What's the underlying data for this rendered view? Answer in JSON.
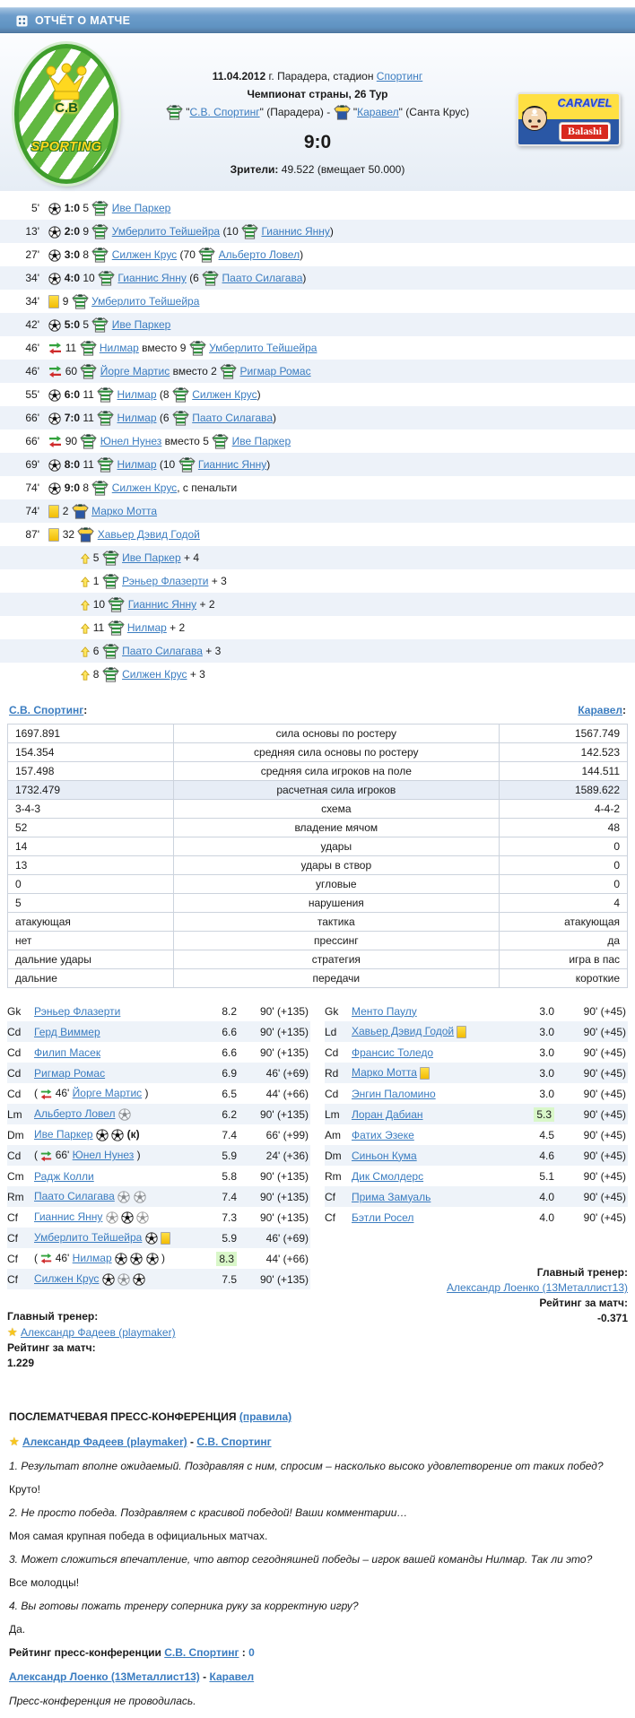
{
  "header": {
    "title": "ОТЧЁТ О МАТЧЕ"
  },
  "labels": {
    "colon": ":",
    "sub_word": "вместо"
  },
  "match": {
    "date": "11.04.2012",
    "date_mid": " г. Парадера, стадион ",
    "stadium": "Спортинг",
    "tournament": "Чемпионат страны, 26 Тур",
    "home": {
      "pre": "\"",
      "name": "С.В. Спортинг",
      "post": "\" (Парадера) - "
    },
    "away": {
      "pre": "\"",
      "name": "Каравел",
      "post": "\" (Санта Крус)"
    },
    "score": "9:0",
    "attendance_label": "Зрители:",
    "attendance": "49.522 (вмещает 50.000)",
    "home_logo": {
      "line1": "C.B",
      "line2": "SPORTING"
    },
    "away_logo": {
      "line1": "CARAVEL",
      "line2": "Balashi"
    }
  },
  "events": [
    {
      "type": "goal",
      "minute": "5'",
      "score": "1:0",
      "num": "5",
      "team": "home",
      "player": "Иве Паркер"
    },
    {
      "type": "goal",
      "minute": "13'",
      "score": "2:0",
      "num": "9",
      "team": "home",
      "player": "Умберлито Тейшейра",
      "assist_num": "10",
      "assist": "Гианнис Янну"
    },
    {
      "type": "goal",
      "minute": "27'",
      "score": "3:0",
      "num": "8",
      "team": "home",
      "player": "Силжен Крус",
      "assist_num": "70",
      "assist": "Альберто Ловел"
    },
    {
      "type": "goal",
      "minute": "34'",
      "score": "4:0",
      "num": "10",
      "team": "home",
      "player": "Гианнис Янну",
      "assist_num": "6",
      "assist": "Паато Силагава"
    },
    {
      "type": "yellow",
      "minute": "34'",
      "num": "9",
      "team": "home",
      "player": "Умберлито Тейшейра"
    },
    {
      "type": "goal",
      "minute": "42'",
      "score": "5:0",
      "num": "5",
      "team": "home",
      "player": "Иве Паркер"
    },
    {
      "type": "sub",
      "minute": "46'",
      "in_num": "11",
      "in": "Нилмар",
      "out_num": "9",
      "out": "Умберлито Тейшейра",
      "team": "home"
    },
    {
      "type": "sub",
      "minute": "46'",
      "in_num": "60",
      "in": "Йорге Мартис",
      "out_num": "2",
      "out": "Ригмар Ромас",
      "team": "home"
    },
    {
      "type": "goal",
      "minute": "55'",
      "score": "6:0",
      "num": "11",
      "team": "home",
      "player": "Нилмар",
      "assist_num": "8",
      "assist": "Силжен Крус"
    },
    {
      "type": "goal",
      "minute": "66'",
      "score": "7:0",
      "num": "11",
      "team": "home",
      "player": "Нилмар",
      "assist_num": "6",
      "assist": "Паато Силагава"
    },
    {
      "type": "sub",
      "minute": "66'",
      "in_num": "90",
      "in": "Юнел Нунез",
      "out_num": "5",
      "out": "Иве Паркер",
      "team": "home"
    },
    {
      "type": "goal",
      "minute": "69'",
      "score": "8:0",
      "num": "11",
      "team": "home",
      "player": "Нилмар",
      "assist_num": "10",
      "assist": "Гианнис Янну"
    },
    {
      "type": "goal",
      "minute": "74'",
      "score": "9:0",
      "num": "8",
      "team": "home",
      "player": "Силжен Крус",
      "note": ", с пенальти"
    },
    {
      "type": "yellow",
      "minute": "74'",
      "num": "2",
      "team": "away",
      "player": "Марко Мотта"
    },
    {
      "type": "yellow",
      "minute": "87'",
      "num": "32",
      "team": "away",
      "player": "Хавьер Дэвид Годой"
    },
    {
      "type": "bonus",
      "num": "5",
      "team": "home",
      "player": "Иве Паркер",
      "bonus": "+ 4"
    },
    {
      "type": "bonus",
      "num": "1",
      "team": "home",
      "player": "Рэньер Флазерти",
      "bonus": "+ 3"
    },
    {
      "type": "bonus",
      "num": "10",
      "team": "home",
      "player": "Гианнис Янну",
      "bonus": "+ 2"
    },
    {
      "type": "bonus",
      "num": "11",
      "team": "home",
      "player": "Нилмар",
      "bonus": "+ 2"
    },
    {
      "type": "bonus",
      "num": "6",
      "team": "home",
      "player": "Паато Силагава",
      "bonus": "+ 3"
    },
    {
      "type": "bonus",
      "num": "8",
      "team": "home",
      "player": "Силжен Крус",
      "bonus": "+ 3"
    }
  ],
  "stats": {
    "home_link": "С.В. Спортинг",
    "away_link": "Каравел",
    "rows": [
      {
        "home": "1697.891",
        "label": "сила основы по ростеру",
        "away": "1567.749"
      },
      {
        "home": "154.354",
        "label": "средняя сила основы по ростеру",
        "away": "142.523"
      },
      {
        "home": "157.498",
        "label": "средняя сила игроков на поле",
        "away": "144.511"
      },
      {
        "home": "1732.479",
        "label": "расчетная сила игроков",
        "away": "1589.622",
        "highlight": true
      },
      {
        "home": "3-4-3",
        "label": "схема",
        "away": "4-4-2"
      },
      {
        "home": "52",
        "label": "владение мячом",
        "away": "48"
      },
      {
        "home": "14",
        "label": "удары",
        "away": "0"
      },
      {
        "home": "13",
        "label": "удары в створ",
        "away": "0"
      },
      {
        "home": "0",
        "label": "угловые",
        "away": "0"
      },
      {
        "home": "5",
        "label": "нарушения",
        "away": "4"
      },
      {
        "home": "атакующая",
        "label": "тактика",
        "away": "атакующая"
      },
      {
        "home": "нет",
        "label": "прессинг",
        "away": "да"
      },
      {
        "home": "дальние удары",
        "label": "стратегия",
        "away": "игра в пас"
      },
      {
        "home": "дальние",
        "label": "передачи",
        "away": "короткие"
      }
    ]
  },
  "rosters": {
    "home": {
      "players": [
        {
          "pos": "Gk",
          "name": "Рэньер Флазерти",
          "rating": "8.2",
          "time": "90' (+135)"
        },
        {
          "pos": "Cd",
          "name": "Герд Виммер",
          "rating": "6.6",
          "time": "90' (+135)"
        },
        {
          "pos": "Cd",
          "name": "Филип Масек",
          "rating": "6.6",
          "time": "90' (+135)"
        },
        {
          "pos": "Cd",
          "name": "Ригмар Ромас",
          "rating": "6.9",
          "time": "46' (+69)"
        },
        {
          "pos": "Cd",
          "sub_in": "46'",
          "name": "Йорге Мартис",
          "rating": "6.5",
          "time": "44' (+66)"
        },
        {
          "pos": "Lm",
          "name": "Альберто Ловел",
          "icons": [
            "assist"
          ],
          "rating": "6.2",
          "time": "90' (+135)"
        },
        {
          "pos": "Dm",
          "name": "Иве Паркер",
          "icons": [
            "goal",
            "goal"
          ],
          "captain": "(к)",
          "rating": "7.4",
          "time": "66' (+99)"
        },
        {
          "pos": "Cd",
          "sub_in": "66'",
          "name": "Юнел Нунез",
          "rating": "5.9",
          "time": "24' (+36)"
        },
        {
          "pos": "Cm",
          "name": "Радж Колли",
          "rating": "5.8",
          "time": "90' (+135)"
        },
        {
          "pos": "Rm",
          "name": "Паато Силагава",
          "icons": [
            "assist",
            "assist"
          ],
          "rating": "7.4",
          "time": "90' (+135)"
        },
        {
          "pos": "Cf",
          "name": "Гианнис Янну",
          "icons": [
            "assist",
            "goal",
            "assist"
          ],
          "rating": "7.3",
          "time": "90' (+135)"
        },
        {
          "pos": "Cf",
          "name": "Умберлито Тейшейра",
          "icons": [
            "goal",
            "yellow"
          ],
          "rating": "5.9",
          "time": "46' (+69)"
        },
        {
          "pos": "Cf",
          "sub_in": "46'",
          "name": "Нилмар",
          "icons": [
            "goal",
            "goal",
            "goal"
          ],
          "rating": "8.3",
          "best": true,
          "time": "44' (+66)"
        },
        {
          "pos": "Cf",
          "name": "Силжен Крус",
          "icons": [
            "goal",
            "assist",
            "goal"
          ],
          "rating": "7.5",
          "time": "90' (+135)"
        }
      ],
      "coach_label": "Главный тренер:",
      "coach": "Александр Фадеев (playmaker)",
      "rating_label": "Рейтинг за матч:",
      "rating": "1.229"
    },
    "away": {
      "players": [
        {
          "pos": "Gk",
          "name": "Менто Паулу",
          "rating": "3.0",
          "time": "90' (+45)"
        },
        {
          "pos": "Ld",
          "name": "Хавьер Дэвид Годой",
          "icons": [
            "yellow"
          ],
          "rating": "3.0",
          "time": "90' (+45)"
        },
        {
          "pos": "Cd",
          "name": "Франсис Толедо",
          "rating": "3.0",
          "time": "90' (+45)"
        },
        {
          "pos": "Rd",
          "name": "Марко Мотта",
          "icons": [
            "yellow"
          ],
          "rating": "3.0",
          "time": "90' (+45)"
        },
        {
          "pos": "Cd",
          "name": "Энгин Паломино",
          "rating": "3.0",
          "time": "90' (+45)"
        },
        {
          "pos": "Lm",
          "name": "Лоран Дабиан",
          "rating": "5.3",
          "best": true,
          "time": "90' (+45)"
        },
        {
          "pos": "Am",
          "name": "Фатих Эзеке",
          "rating": "4.5",
          "time": "90' (+45)"
        },
        {
          "pos": "Dm",
          "name": "Синьон Кума",
          "rating": "4.6",
          "time": "90' (+45)"
        },
        {
          "pos": "Rm",
          "name": "Дик Смолдерс",
          "rating": "5.1",
          "time": "90' (+45)"
        },
        {
          "pos": "Cf",
          "name": "Прима Замуаль",
          "rating": "4.0",
          "time": "90' (+45)"
        },
        {
          "pos": "Cf",
          "name": "Бэтли Росел",
          "rating": "4.0",
          "time": "90' (+45)"
        }
      ],
      "coach_label": "Главный тренер:",
      "coach": "Александр Лоенко (13Металлист13)",
      "rating_label": "Рейтинг за матч:",
      "rating": "-0.371"
    }
  },
  "press": {
    "title": "ПОСЛЕМАТЧЕВАЯ ПРЕСС-КОНФЕРЕНЦИЯ",
    "rules_link": "(правила)",
    "home_coach": "Александр Фадеев (playmaker)",
    "sep": " - ",
    "home_team": "С.В. Спортинг",
    "qa": [
      {
        "q": "1. Результат вполне ожидаемый. Поздравляя с ним, спросим – насколько высоко удовлетворение от таких побед?",
        "a": "Круто!"
      },
      {
        "q": "2. Не просто победа. Поздравляем с красивой победой! Ваши комментарии…",
        "a": "Моя самая крупная победа в официальных матчах."
      },
      {
        "q": "3. Может сложиться впечатление, что автор сегодняшней победы – игрок вашей команды Нилмар. Так ли это?",
        "a": "Все молодцы!"
      },
      {
        "q": "4. Вы готовы пожать тренеру соперника руку за корректную игру?",
        "a": "Да."
      }
    ],
    "rating_label": "Рейтинг пресс-конференции",
    "rating_team": "С.В. Спортинг",
    "rating_sep": " : ",
    "rating_value": "0",
    "away_coach": "Александр Лоенко (13Металлист13)",
    "away_team": "Каравел",
    "away_note": "Пресс-конференция не проводилась."
  },
  "colors": {
    "header_blue": "#6e9dcb",
    "link": "#3a7cc0",
    "row_alt": "#edf2f9",
    "stat_highlight": "#e7edf6",
    "best_rating_bg": "#d9f7c9",
    "yellow_card": "#f2bc05",
    "home_green": "#3f9e2c",
    "away_blue": "#2a57a5",
    "away_yellow": "#ffe042",
    "balashi_red": "#d8281e"
  }
}
